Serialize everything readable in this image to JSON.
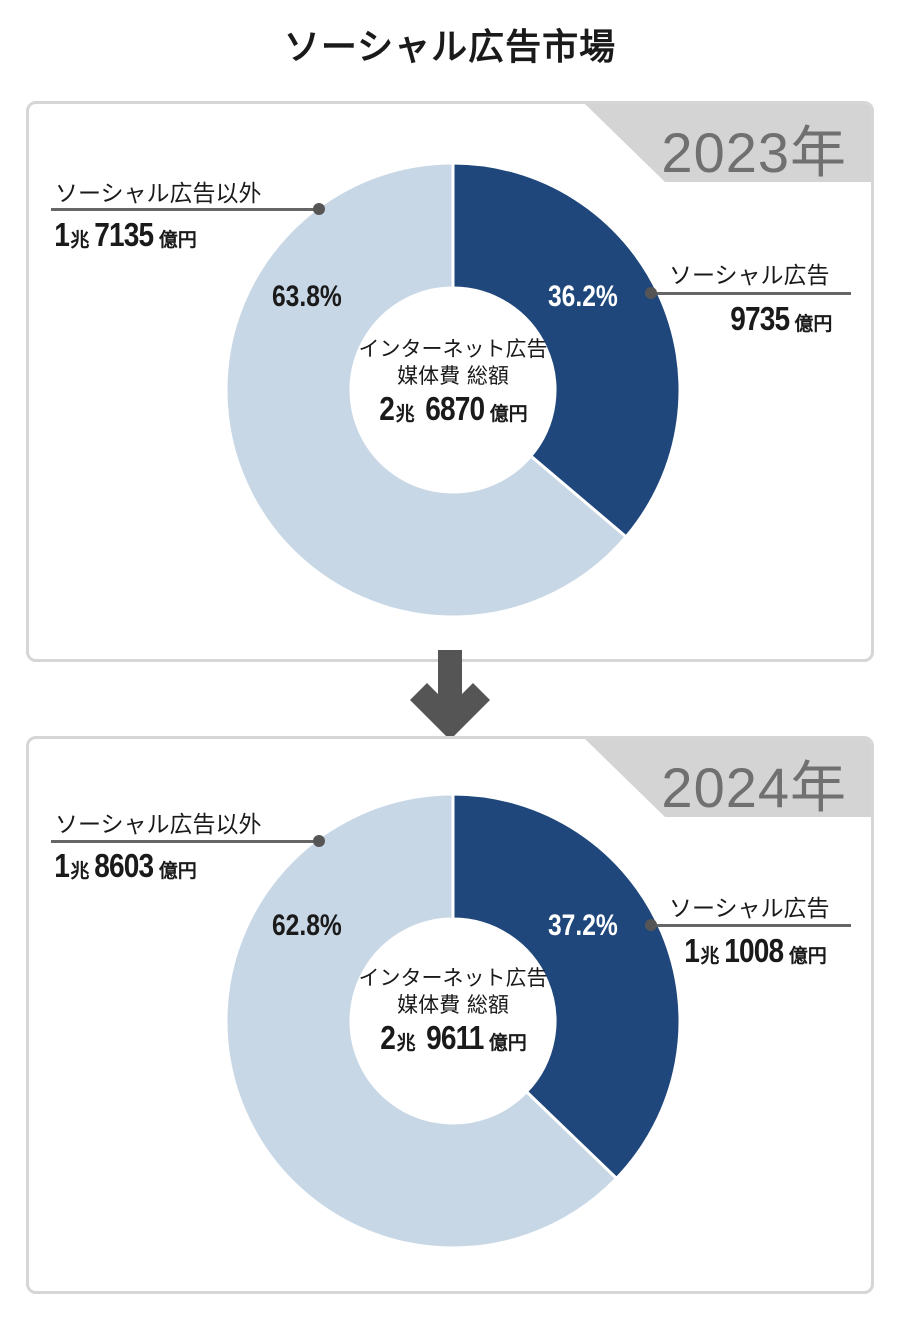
{
  "title": "ソーシャル広告市場",
  "colors": {
    "social": "#1f477b",
    "other": "#c8d7e5",
    "tab": "#d4d4d4",
    "arrow": "#555555"
  },
  "chart_data": [
    {
      "type": "pie",
      "year": "2023年",
      "categories": [
        "ソーシャル広告",
        "ソーシャル広告以外"
      ],
      "values": [
        36.2,
        63.8
      ],
      "percent_labels": [
        "36.2%",
        "63.8%"
      ],
      "amounts": [
        {
          "n1": "",
          "u1": "",
          "n2": "9735",
          "u2": "億円"
        },
        {
          "n1": "1",
          "u1": "兆",
          "n2": "7135",
          "u2": "億円"
        }
      ],
      "center": {
        "line1": "インターネット広告",
        "line2": "媒体費 総額",
        "n1": "2",
        "u1": "兆",
        "n2": "6870",
        "u2": "億円"
      }
    },
    {
      "type": "pie",
      "year": "2024年",
      "categories": [
        "ソーシャル広告",
        "ソーシャル広告以外"
      ],
      "values": [
        37.2,
        62.8
      ],
      "percent_labels": [
        "37.2%",
        "62.8%"
      ],
      "amounts": [
        {
          "n1": "1",
          "u1": "兆",
          "n2": "1008",
          "u2": "億円"
        },
        {
          "n1": "1",
          "u1": "兆",
          "n2": "8603",
          "u2": "億円"
        }
      ],
      "center": {
        "line1": "インターネット広告",
        "line2": "媒体費 総額",
        "n1": "2",
        "u1": "兆",
        "n2": "9611",
        "u2": "億円"
      }
    }
  ]
}
